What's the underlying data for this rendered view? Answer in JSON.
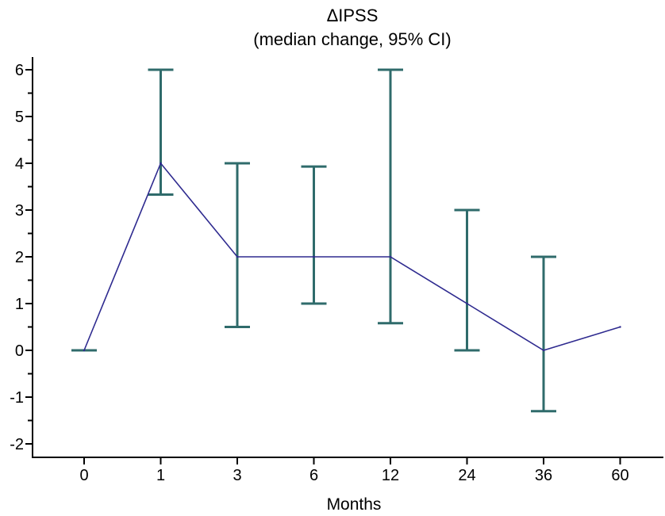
{
  "chart_data": {
    "type": "line",
    "title": "ΔIPSS",
    "subtitle": "(median change, 95% CI)",
    "xlabel": "Months",
    "ylabel": "",
    "categories": [
      "0",
      "1",
      "3",
      "6",
      "12",
      "24",
      "36",
      "60"
    ],
    "series": [
      {
        "values": [
          0,
          4,
          2,
          2,
          2,
          1,
          0,
          0.5
        ],
        "ci_lower": [
          0,
          3.33,
          0.5,
          1,
          0.58,
          0,
          -1.3,
          null
        ],
        "ci_upper": [
          0,
          6,
          4,
          3.93,
          6,
          3,
          2,
          null
        ]
      }
    ],
    "ylim": [
      -2.3,
      6.3
    ],
    "yticks": [
      "-2",
      "-1",
      "0",
      "1",
      "2",
      "3",
      "4",
      "5",
      "6"
    ],
    "grid": false,
    "line_color": "#2e2a8f",
    "errorbar_color": "#2f6b6b"
  }
}
